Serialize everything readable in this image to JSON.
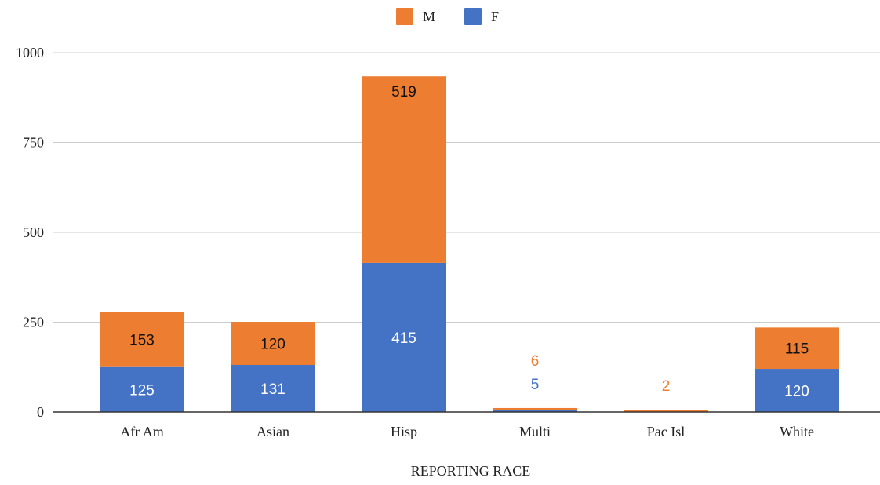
{
  "chart_data": {
    "type": "bar",
    "stacked": true,
    "categories": [
      "Afr Am",
      "Asian",
      "Hisp",
      "Multi",
      "Pac Isl",
      "White"
    ],
    "series": [
      {
        "name": "F",
        "color": "#4472C4",
        "values": [
          125,
          131,
          415,
          5,
          0,
          120
        ]
      },
      {
        "name": "M",
        "color": "#ED7D31",
        "values": [
          153,
          120,
          519,
          6,
          2,
          115
        ]
      }
    ],
    "legend_order": [
      "M",
      "F"
    ],
    "legend_position": "top-center",
    "xlabel": "REPORTING RACE",
    "ylabel": "",
    "ylim": [
      0,
      1000
    ],
    "yticks": [
      0,
      250,
      500,
      750,
      1000
    ],
    "grid": true,
    "data_labels": {
      "F": [
        "125",
        "131",
        "415",
        "5",
        "",
        "120"
      ],
      "M": [
        "153",
        "120",
        "519",
        "6",
        "2",
        "115"
      ]
    }
  }
}
